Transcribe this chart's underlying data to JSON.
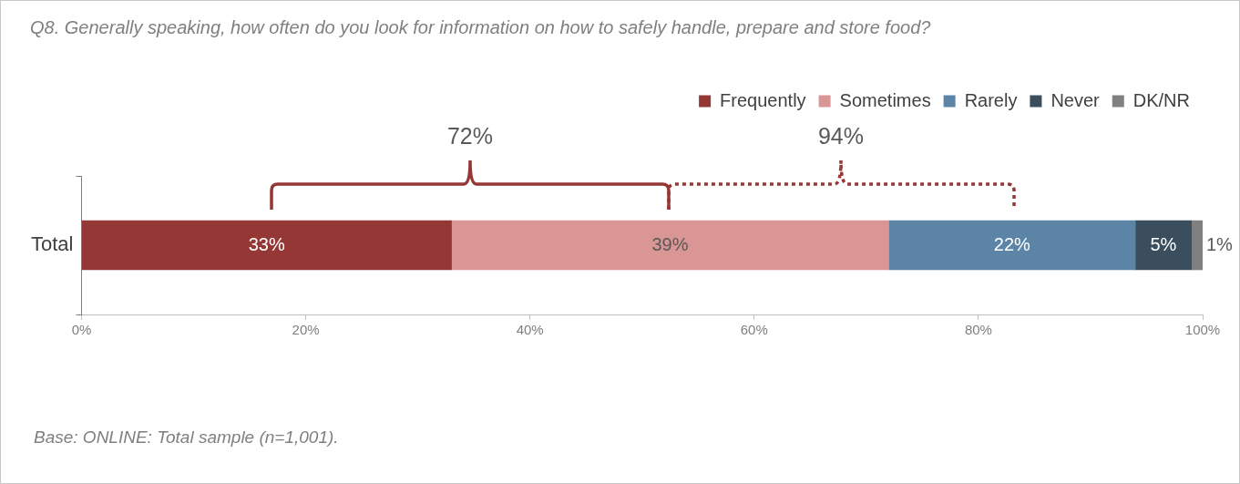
{
  "chart_data": {
    "type": "bar",
    "orientation": "horizontal",
    "stacked": true,
    "title": "Q8.  Generally speaking, how often do you look for information on how to safely handle, prepare and store food?",
    "categories": [
      "Total"
    ],
    "series": [
      {
        "name": "Frequently",
        "color": "#953735",
        "values": [
          33
        ],
        "value_labels": [
          "33%"
        ]
      },
      {
        "name": "Sometimes",
        "color": "#d99694",
        "values": [
          39
        ],
        "value_labels": [
          "39%"
        ]
      },
      {
        "name": "Rarely",
        "color": "#5b84a6",
        "values": [
          22
        ],
        "value_labels": [
          "22%"
        ]
      },
      {
        "name": "Never",
        "color": "#3a4e5d",
        "values": [
          5
        ],
        "value_labels": [
          "5%"
        ]
      },
      {
        "name": "DK/NR",
        "color": "#808080",
        "values": [
          1
        ],
        "value_labels": [
          "1%"
        ]
      }
    ],
    "xlim": [
      0,
      100
    ],
    "xticks": [
      {
        "value": 0,
        "label": "0%"
      },
      {
        "value": 20,
        "label": "20%"
      },
      {
        "value": 40,
        "label": "40%"
      },
      {
        "value": 60,
        "label": "60%"
      },
      {
        "value": 80,
        "label": "80%"
      },
      {
        "value": 100,
        "label": "100%"
      }
    ],
    "grid": false,
    "legend": "top right",
    "annotations": [
      "72%",
      "94%",
      "Base:  ONLINE:  Total sample (n=1,001)."
    ]
  }
}
